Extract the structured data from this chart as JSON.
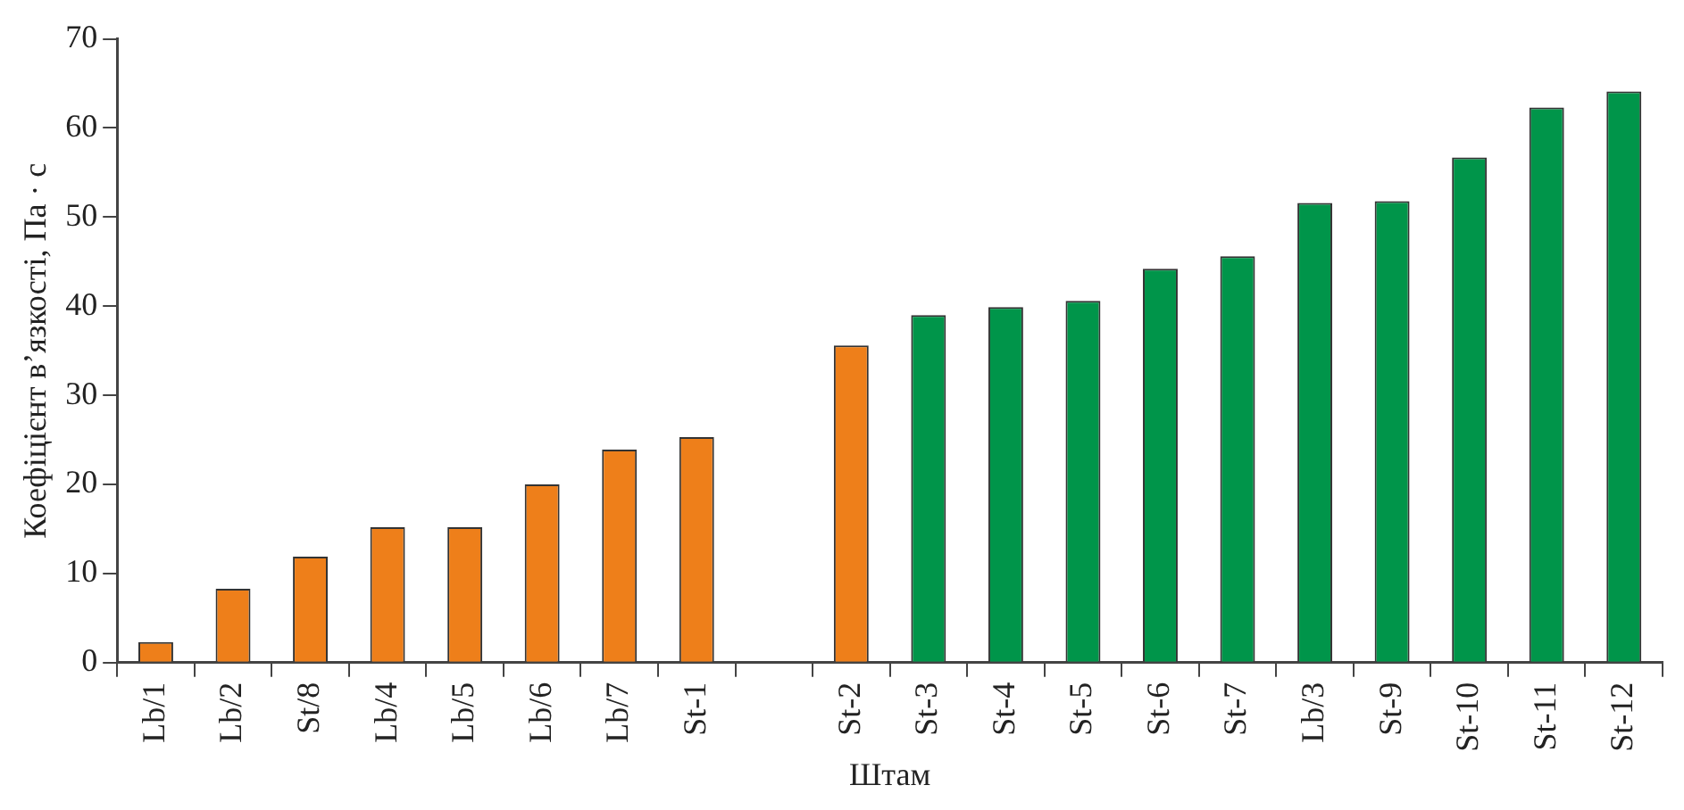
{
  "chart_data": {
    "type": "bar",
    "xlabel": "Штам",
    "ylabel": "Коефіцієнт в’язкості, Па · с",
    "categories": [
      "Lb/1",
      "Lb/2",
      "St/8",
      "Lb/4",
      "Lb/5",
      "Lb/6",
      "Lb/7",
      "St-1",
      null,
      "St-2",
      "St-3",
      "St-4",
      "St-5",
      "St-6",
      "St-7",
      "Lb/3",
      "St-9",
      "St-10",
      "St-11",
      "St-12"
    ],
    "values": [
      2.3,
      8.3,
      11.9,
      15.2,
      15.2,
      20,
      23.9,
      25.3,
      null,
      35.6,
      39.0,
      39.9,
      40.6,
      44.2,
      45.6,
      51.6,
      51.8,
      56.7,
      62.3,
      64.1
    ],
    "colors": [
      "#ee7f1a",
      "#ee7f1a",
      "#ee7f1a",
      "#ee7f1a",
      "#ee7f1a",
      "#ee7f1a",
      "#ee7f1a",
      "#ee7f1a",
      "#ee7f1a",
      "#ee7f1a",
      "#00954a",
      "#00954a",
      "#00954a",
      "#00954a",
      "#00954a",
      "#00954a",
      "#00954a",
      "#00954a",
      "#00954a",
      "#00954a"
    ],
    "ylim": [
      0,
      70
    ],
    "yticks": [
      0,
      10,
      20,
      30,
      40,
      50,
      60,
      70
    ],
    "grid": false,
    "legend": false
  }
}
